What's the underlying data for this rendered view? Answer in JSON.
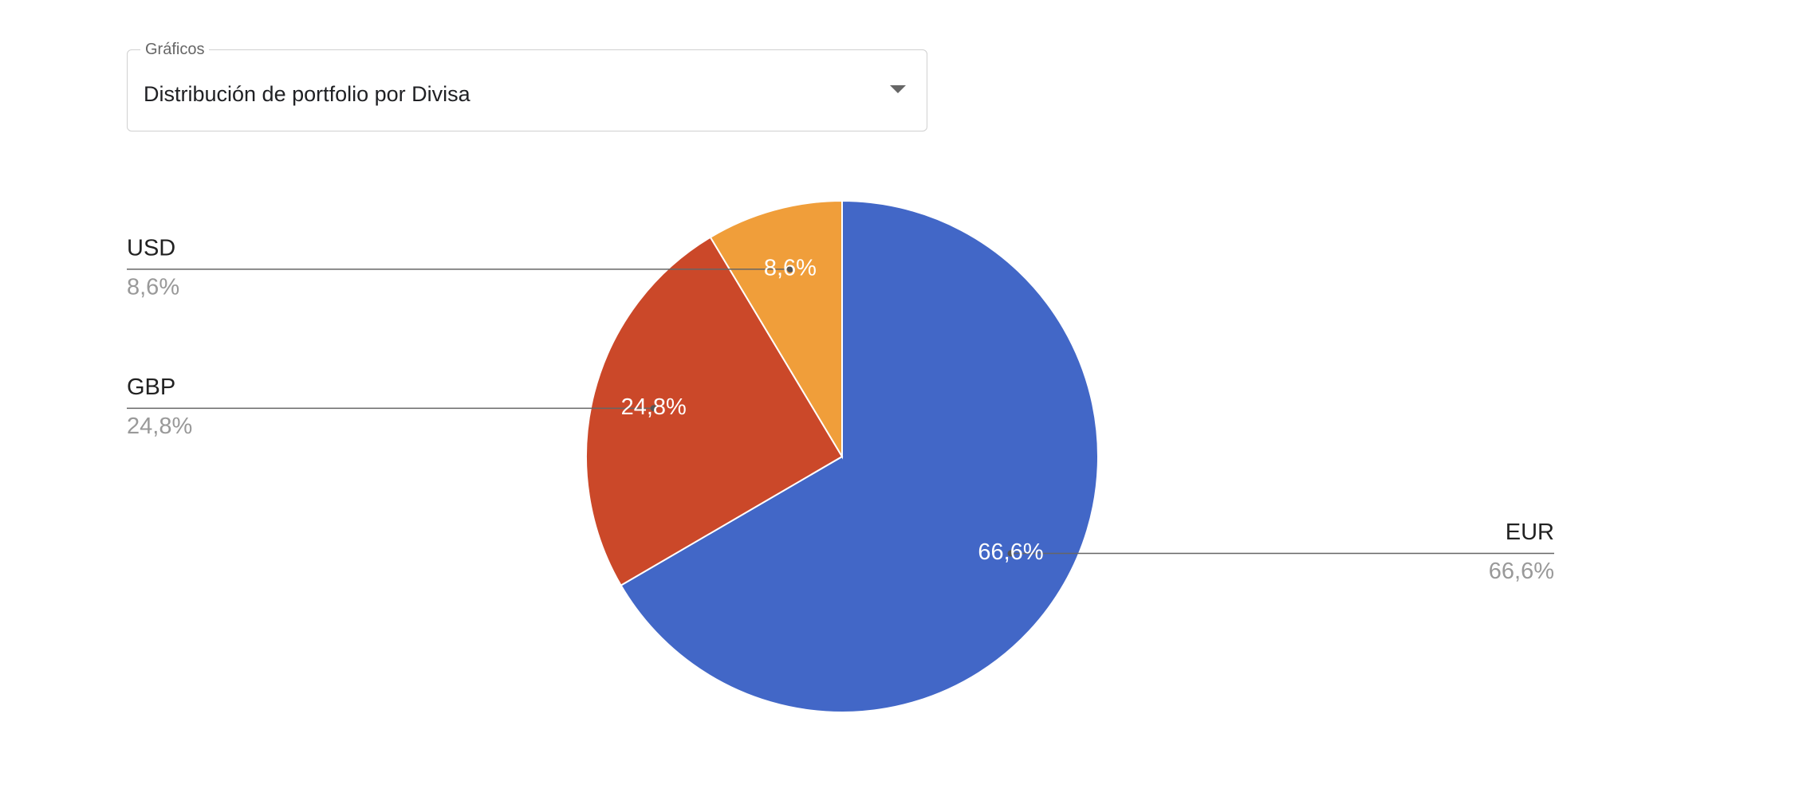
{
  "select": {
    "label": "Gráficos",
    "value": "Distribución de portfolio por Divisa"
  },
  "chart_data": {
    "type": "pie",
    "categories": [
      "EUR",
      "GBP",
      "USD"
    ],
    "values": [
      66.6,
      24.8,
      8.6
    ],
    "value_labels": [
      "66,6%",
      "24,8%",
      "8,6%"
    ],
    "colors": [
      "#4267c7",
      "#cb4829",
      "#f09e3a"
    ]
  }
}
